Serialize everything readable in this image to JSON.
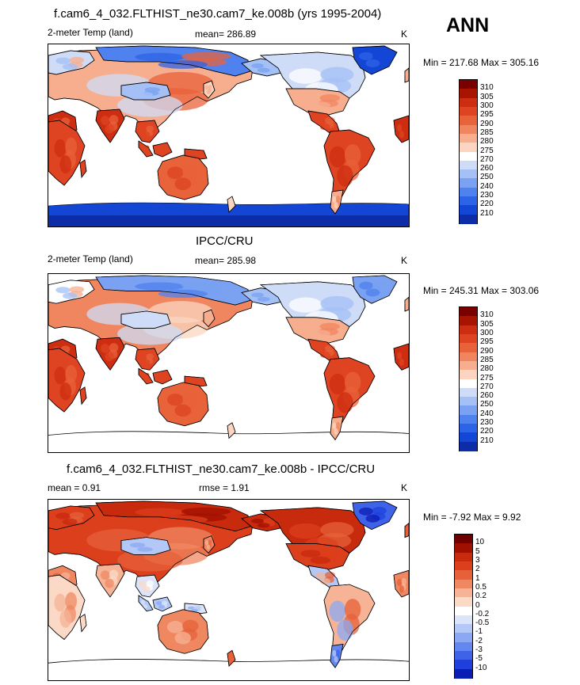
{
  "page_label": "ANN",
  "colors": {
    "land_border": "#000000",
    "temp_scale": [
      "#08106b",
      "#0c2ca8",
      "#1446d6",
      "#2d63e6",
      "#4f82ee",
      "#7aa1f2",
      "#a4c0f5",
      "#cfdcf7",
      "#ffffff",
      "#fbd5c0",
      "#f7ae8f",
      "#f08660",
      "#e8623a",
      "#de4421",
      "#cd2d10",
      "#a81400",
      "#7a0000"
    ],
    "diff_scale": [
      "#00006e",
      "#0b1cb4",
      "#1f40dc",
      "#3e63e8",
      "#6487ef",
      "#8ba9f3",
      "#b3c8f6",
      "#dbe4f9",
      "#ffffff",
      "#fbd9c6",
      "#f6b395",
      "#ef8861",
      "#e6613a",
      "#dc3f1c",
      "#c82a0d",
      "#a01000",
      "#6e0000"
    ]
  },
  "chart_data": [
    {
      "type": "heatmap",
      "title": "f.cam6_4_032.FLTHIST_ne30.cam7_ke.008b (yrs 1995-2004)",
      "left_label": "2-meter Temp (land)",
      "center_label": "mean= 286.89",
      "unit": "K",
      "minmax": "Min = 217.68 Max = 305.16",
      "colorbar_levels": [
        "310",
        "305",
        "300",
        "295",
        "290",
        "285",
        "280",
        "275",
        "270",
        "260",
        "250",
        "240",
        "230",
        "220",
        "210"
      ]
    },
    {
      "type": "heatmap",
      "title": "IPCC/CRU",
      "left_label": "2-meter Temp (land)",
      "center_label": "mean= 285.98",
      "unit": "K",
      "minmax": "Min = 245.31 Max = 303.06",
      "colorbar_levels": [
        "310",
        "305",
        "300",
        "295",
        "290",
        "285",
        "280",
        "275",
        "270",
        "260",
        "250",
        "240",
        "230",
        "220",
        "210"
      ]
    },
    {
      "type": "heatmap",
      "title": "f.cam6_4_032.FLTHIST_ne30.cam7_ke.008b - IPCC/CRU",
      "left_label": "mean =   0.91",
      "center_label": "rmse =   1.91",
      "unit": "K",
      "minmax": "Min =  -7.92 Max =   9.92",
      "colorbar_levels": [
        "10",
        "5",
        "3",
        "2",
        "1",
        "0.5",
        "0.2",
        "0",
        "-0.2",
        "-0.5",
        "-1",
        "-2",
        "-3",
        "-5",
        "-10"
      ]
    }
  ]
}
